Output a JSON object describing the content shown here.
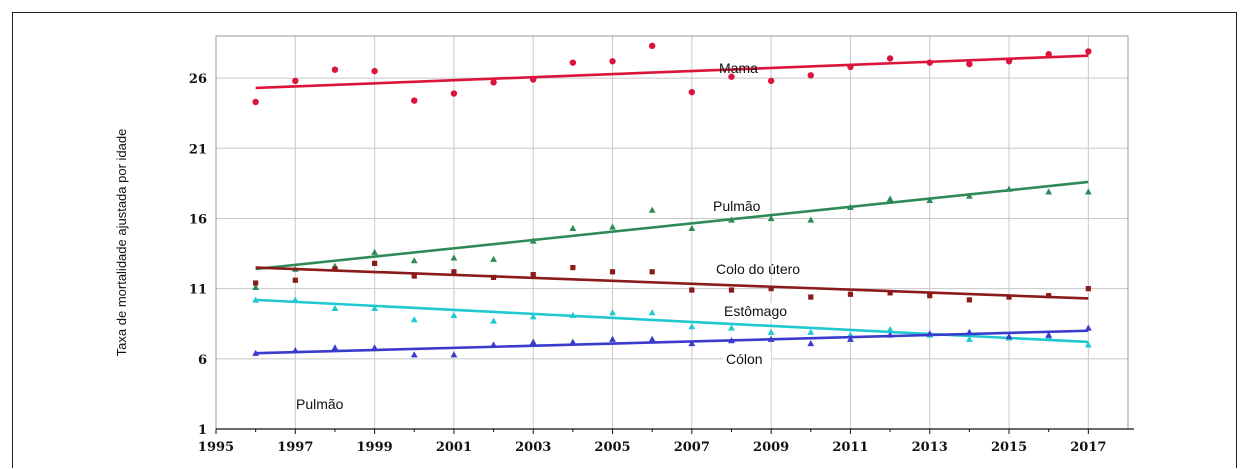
{
  "chart_data": {
    "type": "scatter",
    "title": "",
    "xlabel": "",
    "ylabel": "Taxa de mortalidade ajustada por idade",
    "xlim": [
      1995,
      2018
    ],
    "ylim": [
      1,
      29
    ],
    "xticks": [
      1995,
      1997,
      1999,
      2001,
      2003,
      2005,
      2007,
      2009,
      2011,
      2013,
      2015,
      2017
    ],
    "yticks": [
      1,
      6,
      11,
      16,
      21,
      26
    ],
    "grid": true,
    "annotations": [
      "Pulmão"
    ],
    "series": [
      {
        "name": "Mama",
        "color": "#dc143c",
        "marker": "circle",
        "x": [
          1996,
          1997,
          1998,
          1999,
          2000,
          2001,
          2002,
          2003,
          2004,
          2005,
          2006,
          2007,
          2008,
          2009,
          2010,
          2011,
          2012,
          2013,
          2014,
          2015,
          2016,
          2017
        ],
        "y": [
          24.3,
          25.8,
          26.6,
          26.5,
          24.4,
          24.9,
          25.7,
          25.9,
          27.1,
          27.2,
          28.3,
          25.0,
          26.1,
          25.8,
          26.2,
          26.8,
          27.4,
          27.1,
          27.0,
          27.2,
          27.7,
          27.9
        ],
        "trend": [
          25.3,
          27.6
        ]
      },
      {
        "name": "Pulmão",
        "color": "#2e8b57",
        "marker": "triangle",
        "x": [
          1996,
          1997,
          1998,
          1999,
          2000,
          2001,
          2002,
          2003,
          2004,
          2005,
          2006,
          2007,
          2008,
          2009,
          2010,
          2011,
          2012,
          2013,
          2014,
          2015,
          2016,
          2017
        ],
        "y": [
          11.1,
          12.4,
          12.6,
          13.6,
          13.0,
          13.2,
          13.1,
          14.4,
          15.3,
          15.4,
          16.6,
          15.3,
          15.9,
          16.0,
          15.9,
          16.8,
          17.4,
          17.3,
          17.6,
          18.1,
          17.9,
          17.9
        ],
        "trend": [
          12.4,
          18.6
        ]
      },
      {
        "name": "Colo do útero",
        "color": "#8b1a1a",
        "marker": "square",
        "x": [
          1996,
          1997,
          1998,
          1999,
          2000,
          2001,
          2002,
          2003,
          2004,
          2005,
          2006,
          2007,
          2008,
          2009,
          2010,
          2011,
          2012,
          2013,
          2014,
          2015,
          2016,
          2017
        ],
        "y": [
          11.4,
          11.6,
          12.4,
          12.8,
          11.9,
          12.2,
          11.8,
          12.0,
          12.5,
          12.2,
          12.2,
          10.9,
          10.9,
          11.0,
          10.4,
          10.6,
          10.7,
          10.5,
          10.2,
          10.4,
          10.5,
          11.0
        ],
        "trend": [
          12.5,
          10.3
        ]
      },
      {
        "name": "Estômago",
        "color": "#20c8d0",
        "marker": "triangle",
        "x": [
          1996,
          1997,
          1998,
          1999,
          2000,
          2001,
          2002,
          2003,
          2004,
          2005,
          2006,
          2007,
          2008,
          2009,
          2010,
          2011,
          2012,
          2013,
          2014,
          2015,
          2016,
          2017
        ],
        "y": [
          10.2,
          10.2,
          9.6,
          9.6,
          8.8,
          9.1,
          8.7,
          9.0,
          9.1,
          9.3,
          9.3,
          8.3,
          8.2,
          7.9,
          7.9,
          7.7,
          8.1,
          7.7,
          7.4,
          7.5,
          7.6,
          7.0
        ],
        "trend": [
          10.2,
          7.2
        ]
      },
      {
        "name": "Cólon",
        "color": "#3a3acc",
        "marker": "triangle",
        "x": [
          1996,
          1997,
          1998,
          1999,
          2000,
          2001,
          2002,
          2003,
          2004,
          2005,
          2006,
          2007,
          2008,
          2009,
          2010,
          2011,
          2012,
          2013,
          2014,
          2015,
          2016,
          2017
        ],
        "y": [
          6.4,
          6.6,
          6.8,
          6.8,
          6.3,
          6.3,
          7.0,
          7.2,
          7.2,
          7.4,
          7.4,
          7.1,
          7.3,
          7.4,
          7.1,
          7.4,
          7.7,
          7.8,
          7.9,
          7.6,
          7.7,
          8.2
        ],
        "trend": [
          6.4,
          8.0
        ]
      }
    ]
  }
}
